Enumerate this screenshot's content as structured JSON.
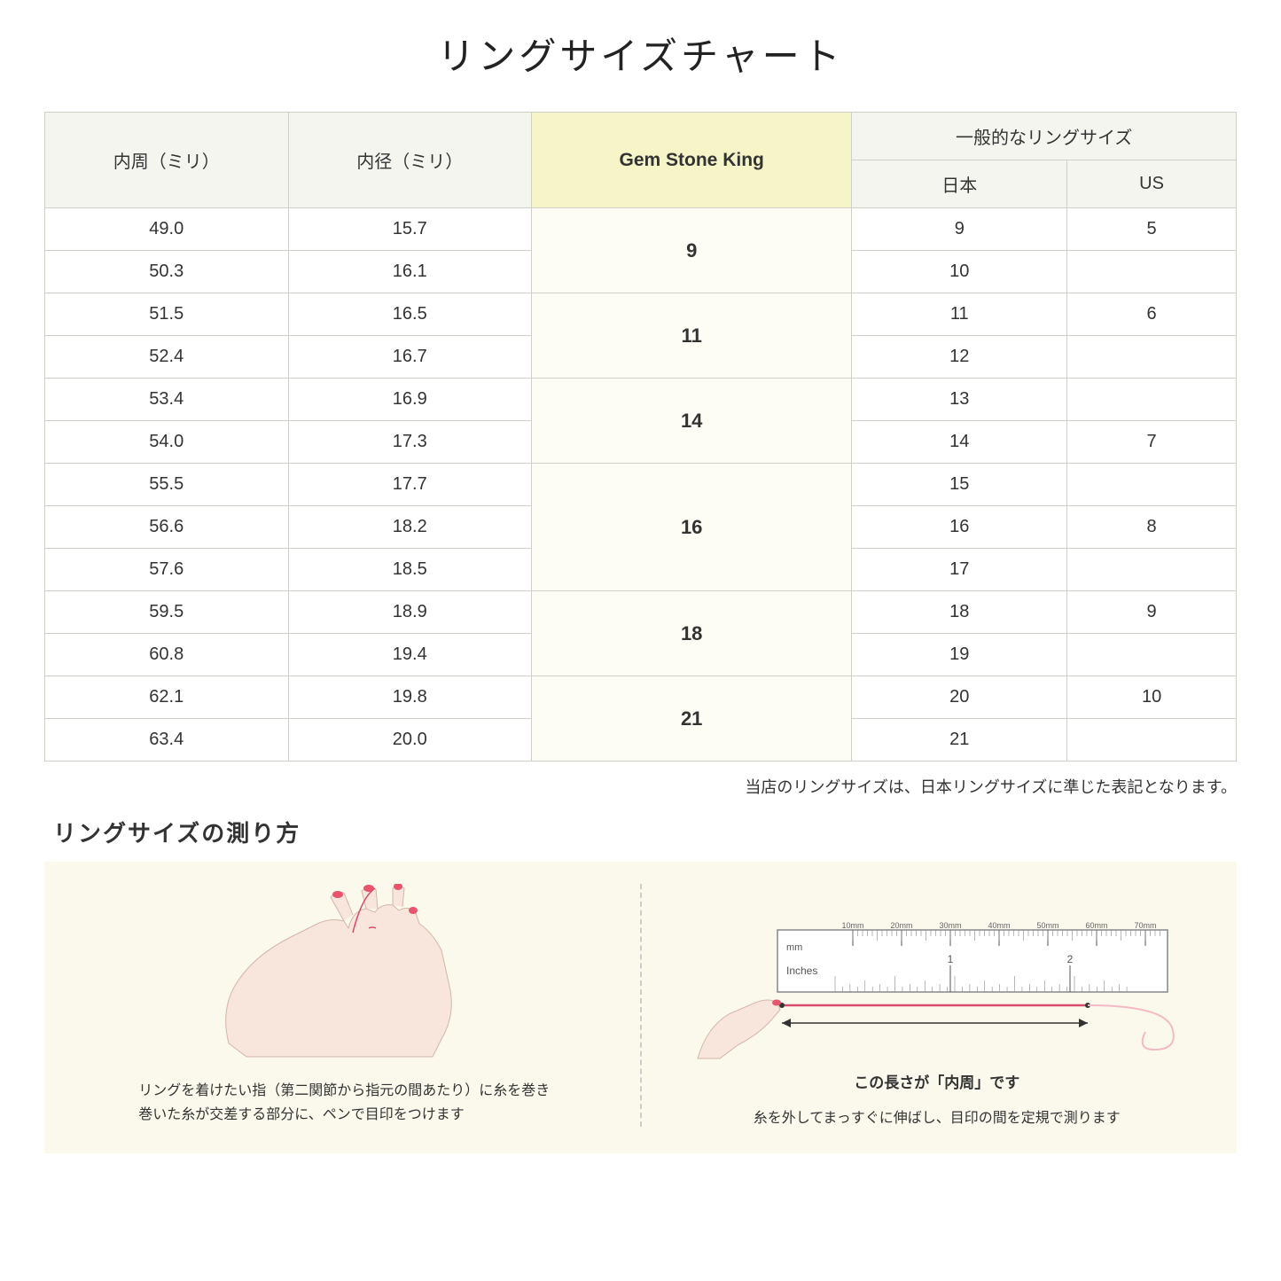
{
  "title": "リングサイズチャート",
  "headers": {
    "circumference": "内周（ミリ）",
    "diameter": "内径（ミリ）",
    "gsk": "Gem Stone King",
    "general": "一般的なリングサイズ",
    "japan": "日本",
    "us": "US"
  },
  "groups": [
    {
      "gsk": "9",
      "rows": [
        {
          "c": "49.0",
          "d": "15.7",
          "jp": "9",
          "us": "5"
        },
        {
          "c": "50.3",
          "d": "16.1",
          "jp": "10",
          "us": ""
        }
      ]
    },
    {
      "gsk": "11",
      "rows": [
        {
          "c": "51.5",
          "d": "16.5",
          "jp": "11",
          "us": "6"
        },
        {
          "c": "52.4",
          "d": "16.7",
          "jp": "12",
          "us": ""
        }
      ]
    },
    {
      "gsk": "14",
      "rows": [
        {
          "c": "53.4",
          "d": "16.9",
          "jp": "13",
          "us": ""
        },
        {
          "c": "54.0",
          "d": "17.3",
          "jp": "14",
          "us": "7"
        }
      ]
    },
    {
      "gsk": "16",
      "rows": [
        {
          "c": "55.5",
          "d": "17.7",
          "jp": "15",
          "us": ""
        },
        {
          "c": "56.6",
          "d": "18.2",
          "jp": "16",
          "us": "8"
        },
        {
          "c": "57.6",
          "d": "18.5",
          "jp": "17",
          "us": ""
        }
      ]
    },
    {
      "gsk": "18",
      "rows": [
        {
          "c": "59.5",
          "d": "18.9",
          "jp": "18",
          "us": "9"
        },
        {
          "c": "60.8",
          "d": "19.4",
          "jp": "19",
          "us": ""
        }
      ]
    },
    {
      "gsk": "21",
      "rows": [
        {
          "c": "62.1",
          "d": "19.8",
          "jp": "20",
          "us": "10"
        },
        {
          "c": "63.4",
          "d": "20.0",
          "jp": "21",
          "us": ""
        }
      ]
    }
  ],
  "note": "当店のリングサイズは、日本リングサイズに準じた表記となります。",
  "howto_title": "リングサイズの測り方",
  "step1_line1": "リングを着けたい指（第二関節から指元の間あたり）に糸を巻き",
  "step1_line2": "巻いた糸が交差する部分に、ペンで目印をつけます",
  "step2_label": "この長さが「内周」です",
  "step2_caption": "糸を外してまっすぐに伸ばし、目印の間を定規で測ります",
  "ruler": {
    "mm_label": "mm",
    "inches_label": "Inches",
    "mm_ticks": [
      "10mm",
      "20mm",
      "30mm",
      "40mm",
      "50mm",
      "60mm",
      "70mm"
    ],
    "inch_ticks": [
      "1",
      "2"
    ]
  },
  "colors": {
    "header_bg": "#f5f5f0",
    "gsk_bg": "#f5f5c8",
    "gsk_cell_bg": "#fdfdf5",
    "border": "#d0d0c8",
    "howto_bg": "#fbf9ec",
    "thread": "#d94b6a",
    "skin": "#f8e5dc",
    "nail": "#e8546b"
  }
}
